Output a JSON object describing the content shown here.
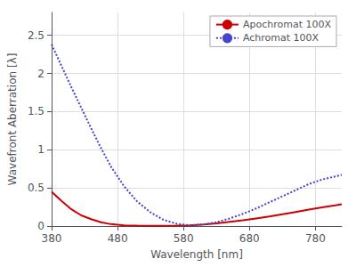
{
  "chart_data": {
    "type": "line",
    "xlabel": "Wavelength [nm]",
    "ylabel": "Wavefront Aberration [λ]",
    "xlim": [
      380,
      820
    ],
    "ylim": [
      0,
      2.8
    ],
    "xticks": [
      380,
      480,
      580,
      680,
      780
    ],
    "yticks": [
      0,
      0.5,
      1.0,
      1.5,
      2.0,
      2.5
    ],
    "grid": true,
    "legend": "upper right",
    "x": [
      380,
      395,
      410,
      425,
      440,
      455,
      470,
      490,
      510,
      530,
      550,
      570,
      590,
      610,
      630,
      650,
      670,
      690,
      710,
      730,
      750,
      770,
      790,
      810,
      820
    ],
    "series": [
      {
        "name": "Apochromat 100X",
        "color": "#cc0000",
        "line_style": "solid",
        "values": [
          0.45,
          0.33,
          0.22,
          0.14,
          0.09,
          0.05,
          0.025,
          0.01,
          0.005,
          0.003,
          0.003,
          0.005,
          0.01,
          0.02,
          0.035,
          0.055,
          0.075,
          0.1,
          0.125,
          0.155,
          0.185,
          0.215,
          0.245,
          0.27,
          0.285
        ]
      },
      {
        "name": "Achromat 100X",
        "color": "#4444cc",
        "line_style": "dotted",
        "values": [
          2.38,
          2.1,
          1.82,
          1.55,
          1.28,
          1.02,
          0.78,
          0.52,
          0.32,
          0.18,
          0.08,
          0.03,
          0.01,
          0.02,
          0.05,
          0.1,
          0.16,
          0.23,
          0.31,
          0.39,
          0.47,
          0.55,
          0.61,
          0.65,
          0.67
        ]
      }
    ]
  }
}
